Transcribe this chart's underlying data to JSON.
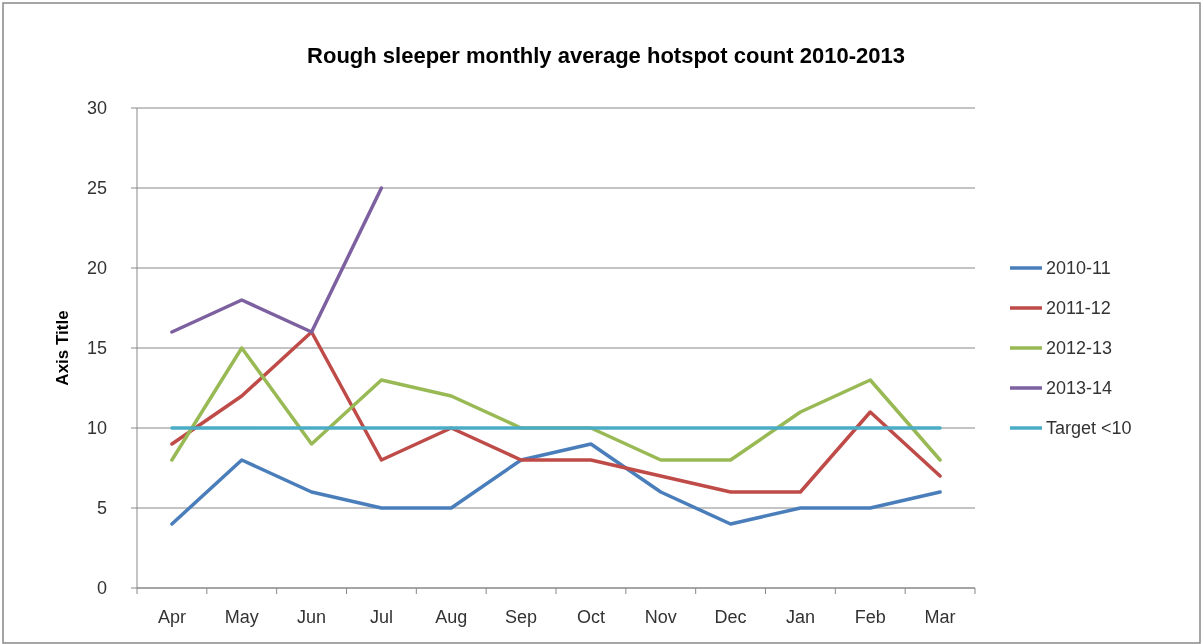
{
  "chart_data": {
    "type": "line",
    "title": "Rough sleeper monthly average hotspot count 2010-2013",
    "ylabel": "Axis Title",
    "categories": [
      "Apr",
      "May",
      "Jun",
      "Jul",
      "Aug",
      "Sep",
      "Oct",
      "Nov",
      "Dec",
      "Jan",
      "Feb",
      "Mar"
    ],
    "series": [
      {
        "name": "2010-11",
        "color": "#4a7ebb",
        "values": [
          4,
          8,
          6,
          5,
          5,
          8,
          9,
          6,
          4,
          5,
          5,
          6
        ]
      },
      {
        "name": "2011-12",
        "color": "#be4b48",
        "values": [
          9,
          12,
          16,
          8,
          10,
          8,
          8,
          7,
          6,
          6,
          11,
          7
        ]
      },
      {
        "name": "2012-13",
        "color": "#98b954",
        "values": [
          8,
          15,
          9,
          13,
          12,
          10,
          10,
          8,
          8,
          11,
          13,
          8
        ]
      },
      {
        "name": "2013-14",
        "color": "#7d60a0",
        "values": [
          16,
          18,
          16,
          25,
          null,
          null,
          null,
          null,
          null,
          null,
          null,
          null
        ]
      },
      {
        "name": "Target <10",
        "color": "#4bacc6",
        "values": [
          10,
          10,
          10,
          10,
          10,
          10,
          10,
          10,
          10,
          10,
          10,
          10
        ]
      }
    ],
    "ylim": [
      0,
      30
    ],
    "yticks": [
      0,
      5,
      10,
      15,
      20,
      25,
      30
    ],
    "grid": "y",
    "legend": "right",
    "marker": "none",
    "line_style": "solid"
  }
}
